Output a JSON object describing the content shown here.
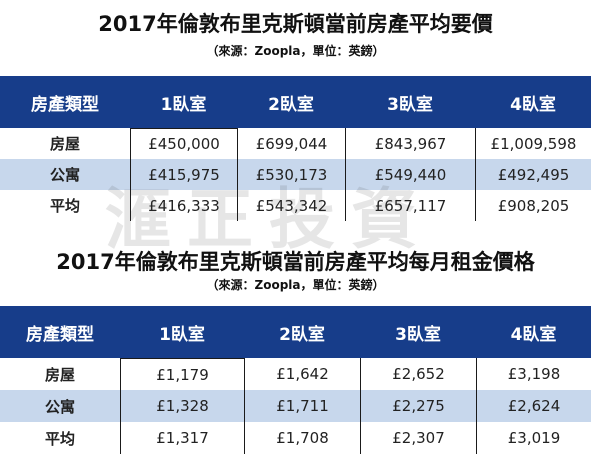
{
  "table1": {
    "title": "2017年倫敦布里克斯頓當前房產平均要價",
    "source": "（來源：Zoopla，單位：英鎊）",
    "headers": [
      "房產類型",
      "1臥室",
      "2臥室",
      "3臥室",
      "4臥室"
    ],
    "rows": [
      {
        "type": "房屋",
        "values": [
          "£450,000",
          "£699,044",
          "£843,967",
          "£1,009,598"
        ]
      },
      {
        "type": "公寓",
        "values": [
          "£415,975",
          "£530,173",
          "£549,440",
          "£492,495"
        ]
      },
      {
        "type": "平均",
        "values": [
          "£416,333",
          "£543,342",
          "£657,117",
          "£908,205"
        ]
      }
    ]
  },
  "table2": {
    "title": "2017年倫敦布里克斯頓當前房產平均每月租金價格",
    "source": "（來源：Zoopla，單位：英鎊）",
    "headers": [
      "房產類型",
      "1臥室",
      "2臥室",
      "3臥室",
      "4臥室"
    ],
    "rows": [
      {
        "type": "房屋",
        "values": [
          "£1,179",
          "£1,642",
          "£2,652",
          "£3,198"
        ]
      },
      {
        "type": "公寓",
        "values": [
          "£1,328",
          "£1,711",
          "£2,275",
          "£2,624"
        ]
      },
      {
        "type": "平均",
        "values": [
          "£1,317",
          "£1,708",
          "£2,307",
          "£3,019"
        ]
      }
    ]
  },
  "watermark": "滙正投資",
  "colors": {
    "header_bg": "#173d8a",
    "alt_row_bg": "#c7d7ec"
  }
}
